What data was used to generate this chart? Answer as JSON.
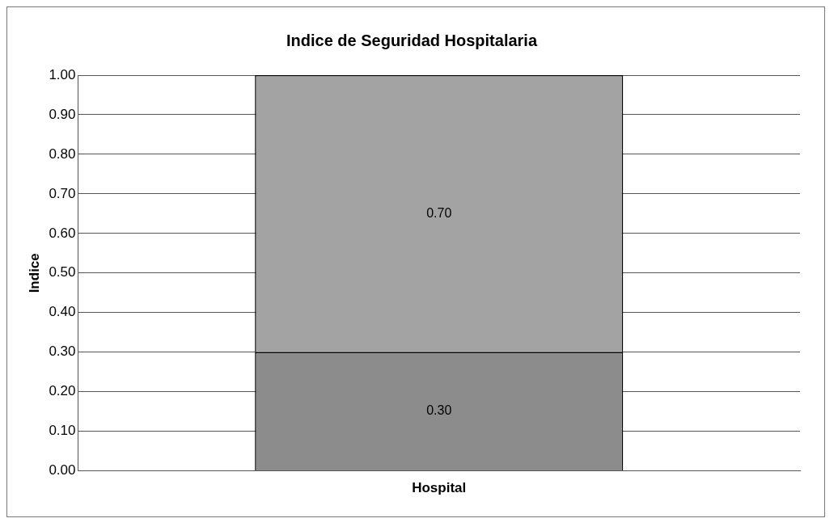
{
  "chart_data": {
    "type": "bar",
    "title": "Indice de Seguridad Hospitalaria",
    "xlabel": "Hospital",
    "ylabel": "Indice",
    "categories": [
      null
    ],
    "stacked": true,
    "series": [
      {
        "color": "#8c8c8c",
        "values": [
          0.3
        ],
        "value_labels": [
          "0.30"
        ]
      },
      {
        "color": "#a3a3a3",
        "values": [
          0.7
        ],
        "value_labels": [
          "0.70"
        ]
      }
    ],
    "ylim": [
      0,
      1
    ],
    "yticks": [
      {
        "value": 0,
        "label": "0.00"
      },
      {
        "value": 0.1,
        "label": "0.10"
      },
      {
        "value": 0.2,
        "label": "0.20"
      },
      {
        "value": 0.3,
        "label": "0.30"
      },
      {
        "value": 0.4,
        "label": "0.40"
      },
      {
        "value": 0.5,
        "label": "0.50"
      },
      {
        "value": 0.6,
        "label": "0.60"
      },
      {
        "value": 0.7,
        "label": "0.70"
      },
      {
        "value": 0.8,
        "label": "0.80"
      },
      {
        "value": 0.9,
        "label": "0.90"
      },
      {
        "value": 1,
        "label": "1.00"
      }
    ],
    "grid": "y",
    "legend": false
  }
}
